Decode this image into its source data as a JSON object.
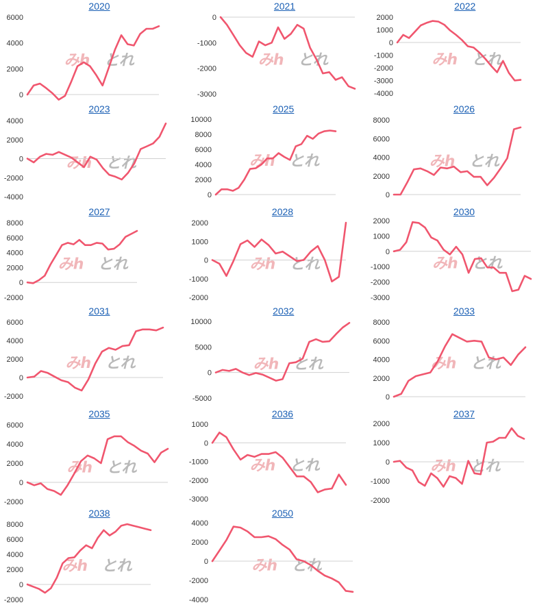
{
  "colors": {
    "line": "#f0566e",
    "axis": "#d0d0d0",
    "title": "#1a5fb4",
    "text": "#333333"
  },
  "watermark": {
    "text_a": "みh",
    "text_b": "とれ"
  },
  "chart_data": [
    {
      "type": "line",
      "title": "2020",
      "ylim": [
        0,
        6000
      ],
      "yticks": [
        "6000",
        "4000",
        "2000",
        "0"
      ],
      "values": [
        0,
        700,
        850,
        500,
        100,
        -400,
        -100,
        1000,
        2200,
        2500,
        2200,
        1500,
        700,
        2100,
        3500,
        4600,
        3900,
        3800,
        4700,
        5100,
        5100,
        5300
      ]
    },
    {
      "type": "line",
      "title": "2021",
      "ylim": [
        -3000,
        0
      ],
      "yticks": [
        "0",
        "-1000",
        "-2000",
        "-3000"
      ],
      "values": [
        0,
        -300,
        -700,
        -1100,
        -1400,
        -1550,
        -950,
        -1100,
        -1000,
        -400,
        -850,
        -650,
        -300,
        -450,
        -1200,
        -1650,
        -2200,
        -2150,
        -2450,
        -2350,
        -2700,
        -2800
      ]
    },
    {
      "type": "line",
      "title": "2022",
      "ylim": [
        -4000,
        2000
      ],
      "yticks": [
        "2000",
        "1000",
        "0",
        "-1000",
        "-2000",
        "-3000",
        "-4000"
      ],
      "values": [
        0,
        600,
        350,
        850,
        1350,
        1550,
        1700,
        1650,
        1400,
        950,
        600,
        200,
        -300,
        -400,
        -800,
        -1300,
        -1850,
        -2350,
        -1450,
        -2400,
        -3000,
        -2950
      ]
    },
    {
      "type": "line",
      "title": "2023",
      "ylim": [
        -4000,
        4000
      ],
      "yticks": [
        "4000",
        "2000",
        "0",
        "-2000",
        "-4000"
      ],
      "values": [
        0,
        -400,
        200,
        500,
        400,
        700,
        400,
        100,
        -400,
        -900,
        200,
        -100,
        -1000,
        -1700,
        -1900,
        -2200,
        -1500,
        -500,
        1000,
        1300,
        1600,
        2300,
        3700
      ]
    },
    {
      "type": "line",
      "title": "2025",
      "ylim": [
        0,
        10000
      ],
      "yticks": [
        "10000",
        "8000",
        "6000",
        "4000",
        "2000",
        "0"
      ],
      "values": [
        0,
        700,
        700,
        500,
        900,
        2000,
        3400,
        3500,
        4000,
        4800,
        4800,
        5500,
        5000,
        4600,
        6400,
        6700,
        7800,
        7400,
        8100,
        8400,
        8500,
        8400
      ]
    },
    {
      "type": "line",
      "title": "2026",
      "ylim": [
        0,
        8000
      ],
      "yticks": [
        "8000",
        "6000",
        "4000",
        "2000",
        "0"
      ],
      "values": [
        0,
        0,
        1300,
        2700,
        2800,
        2500,
        2100,
        2900,
        2800,
        3000,
        2400,
        2500,
        1900,
        1900,
        1000,
        1800,
        2800,
        3900,
        7000,
        7200
      ]
    },
    {
      "type": "line",
      "title": "2027",
      "ylim": [
        -2000,
        8000
      ],
      "yticks": [
        "8000",
        "6000",
        "4000",
        "2000",
        "0",
        "-2000"
      ],
      "values": [
        0,
        -100,
        300,
        900,
        2400,
        3700,
        5000,
        5300,
        5100,
        5700,
        5000,
        5000,
        5300,
        5200,
        4400,
        4500,
        5100,
        6100,
        6500,
        6900
      ]
    },
    {
      "type": "line",
      "title": "2028",
      "ylim": [
        -2000,
        2000
      ],
      "yticks": [
        "2000",
        "1000",
        "0",
        "-1000",
        "-2000"
      ],
      "values": [
        0,
        -200,
        -850,
        -50,
        850,
        1050,
        700,
        1100,
        800,
        350,
        450,
        200,
        -50,
        0,
        450,
        750,
        0,
        -1150,
        -900,
        2000
      ]
    },
    {
      "type": "line",
      "title": "2030",
      "ylim": [
        -3000,
        2000
      ],
      "yticks": [
        "2000",
        "1000",
        "0",
        "-1000",
        "-2000",
        "-3000"
      ],
      "values": [
        0,
        100,
        600,
        1900,
        1850,
        1550,
        900,
        700,
        100,
        -200,
        300,
        -200,
        -1400,
        -500,
        -450,
        -1050,
        -1050,
        -1400,
        -1400,
        -2600,
        -2500,
        -1600,
        -1800
      ]
    },
    {
      "type": "line",
      "title": "2031",
      "ylim": [
        -2000,
        6000
      ],
      "yticks": [
        "6000",
        "4000",
        "2000",
        "0",
        "-2000"
      ],
      "values": [
        0,
        100,
        700,
        500,
        100,
        -300,
        -500,
        -1100,
        -1400,
        -200,
        1500,
        2800,
        3200,
        3000,
        3400,
        3500,
        5000,
        5200,
        5200,
        5100,
        5400
      ]
    },
    {
      "type": "line",
      "title": "2032",
      "ylim": [
        -5000,
        10000
      ],
      "yticks": [
        "10000",
        "5000",
        "0",
        "-5000"
      ],
      "values": [
        0,
        500,
        300,
        700,
        0,
        -500,
        -100,
        -400,
        -1000,
        -1600,
        -1300,
        1800,
        2000,
        2700,
        6000,
        6500,
        6000,
        6100,
        7500,
        8800,
        9700
      ]
    },
    {
      "type": "line",
      "title": "2033",
      "ylim": [
        0,
        8000
      ],
      "yticks": [
        "8000",
        "6000",
        "4000",
        "2000",
        "0"
      ],
      "values": [
        0,
        300,
        1700,
        2200,
        2400,
        2600,
        3800,
        5400,
        6700,
        6300,
        5900,
        6000,
        5900,
        4200,
        4000,
        4200,
        3400,
        4500,
        5300
      ]
    },
    {
      "type": "line",
      "title": "2035",
      "ylim": [
        -2000,
        6000
      ],
      "yticks": [
        "6000",
        "4000",
        "2000",
        "0",
        "-2000"
      ],
      "values": [
        0,
        -300,
        -100,
        -700,
        -900,
        -1300,
        -300,
        900,
        2200,
        2800,
        2500,
        2000,
        4500,
        4800,
        4800,
        4200,
        3800,
        3300,
        3000,
        2100,
        3100,
        3500
      ]
    },
    {
      "type": "line",
      "title": "2036",
      "ylim": [
        -3000,
        1000
      ],
      "yticks": [
        "1000",
        "0",
        "-1000",
        "-2000",
        "-3000"
      ],
      "values": [
        0,
        550,
        300,
        -350,
        -900,
        -650,
        -750,
        -600,
        -600,
        -500,
        -800,
        -1300,
        -1800,
        -1800,
        -2100,
        -2650,
        -2500,
        -2450,
        -1700,
        -2250
      ]
    },
    {
      "type": "line",
      "title": "2037",
      "ylim": [
        -2000,
        2000
      ],
      "yticks": [
        "2000",
        "1000",
        "0",
        "-1000",
        "-2000"
      ],
      "values": [
        0,
        50,
        -300,
        -450,
        -1050,
        -1250,
        -600,
        -850,
        -1300,
        -750,
        -850,
        -1150,
        50,
        -600,
        -650,
        1000,
        1050,
        1250,
        1250,
        1750,
        1350,
        1200
      ]
    },
    {
      "type": "line",
      "title": "2038",
      "ylim": [
        -2000,
        8000
      ],
      "yticks": [
        "8000",
        "6000",
        "4000",
        "2000",
        "0",
        "-2000"
      ],
      "values": [
        0,
        -300,
        -600,
        -1100,
        -500,
        900,
        2800,
        3500,
        3600,
        4500,
        5200,
        4800,
        6200,
        7200,
        6500,
        7000,
        7800,
        8000,
        7800,
        7600,
        7400,
        7200
      ]
    },
    {
      "type": "line",
      "title": "2050",
      "ylim": [
        -4000,
        4000
      ],
      "yticks": [
        "4000",
        "2000",
        "0",
        "-2000",
        "-4000"
      ],
      "values": [
        0,
        1100,
        2200,
        3600,
        3500,
        3100,
        2500,
        2500,
        2600,
        2300,
        1700,
        1200,
        200,
        0,
        -400,
        -1000,
        -1500,
        -1800,
        -2200,
        -3100,
        -3200
      ]
    }
  ]
}
